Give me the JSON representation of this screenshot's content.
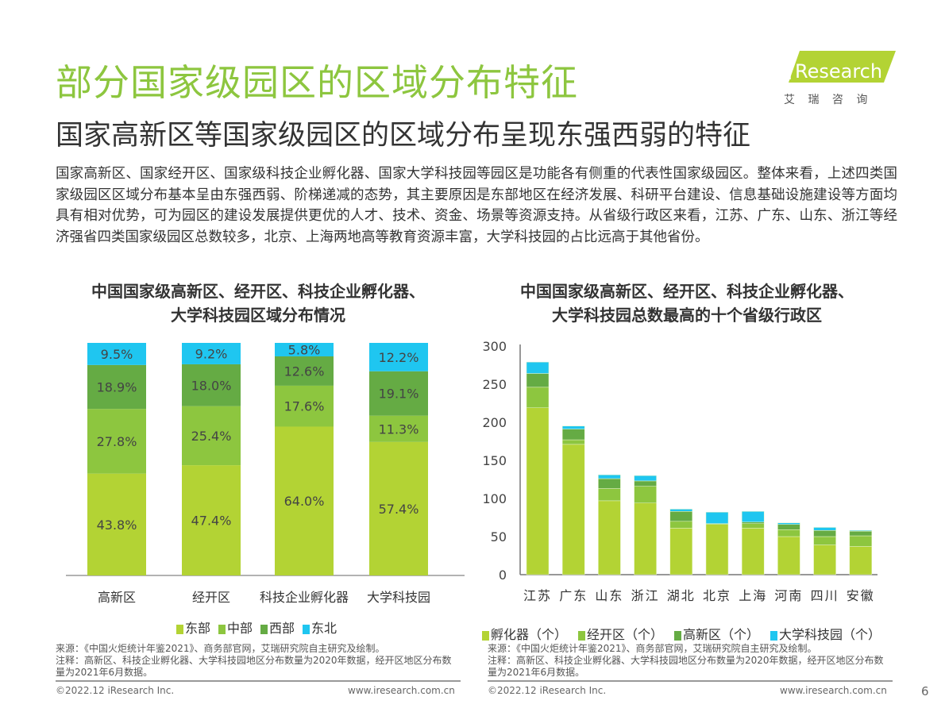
{
  "header": {
    "title": "部分国家级园区的区域分布特征",
    "subtitle": "国家高新区等国家级园区的区域分布呈现东强西弱的特征",
    "logo_text": "iResearch",
    "logo_sub": "艾 瑞 咨 询"
  },
  "body_text": "国家高新区、国家经开区、国家级科技企业孵化器、国家大学科技园等园区是功能各有侧重的代表性国家级园区。整体来看，上述四类国家级园区区域分布基本呈由东强西弱、阶梯递减的态势，其主要原因是东部地区在经济发展、科研平台建设、信息基础设施建设等方面均具有相对优势，可为园区的建设发展提供更优的人才、技术、资金、场景等资源支持。从省级行政区来看，江苏、广东、山东、浙江等经济强省四类国家级园区总数较多，北京、上海两地高等教育资源丰富，大学科技园的占比远高于其他省份。",
  "colors": {
    "accent": "#8dc63f",
    "east": "#b3d334",
    "central": "#8dc63f",
    "west": "#65ab44",
    "northeast": "#1fc6f0"
  },
  "chart_data": [
    {
      "type": "bar",
      "stacked": true,
      "percent": true,
      "title": "中国国家级高新区、经开区、科技企业孵化器、大学科技园区域分布情况",
      "title_lines": [
        "中国国家级高新区、经开区、科技企业孵化器、",
        "大学科技园区域分布情况"
      ],
      "categories": [
        "高新区",
        "经开区",
        "科技企业孵化器",
        "大学科技园"
      ],
      "series": [
        {
          "name": "东部",
          "values": [
            43.8,
            47.4,
            64.0,
            57.4
          ],
          "color": "#b3d334"
        },
        {
          "name": "中部",
          "values": [
            27.8,
            25.4,
            17.6,
            11.3
          ],
          "color": "#8dc63f"
        },
        {
          "name": "西部",
          "values": [
            18.9,
            18.0,
            12.6,
            19.1
          ],
          "color": "#65ab44"
        },
        {
          "name": "东北",
          "values": [
            9.5,
            9.2,
            5.8,
            12.2
          ],
          "color": "#1fc6f0"
        }
      ],
      "legend": "bottom",
      "ylim": [
        0,
        100
      ]
    },
    {
      "type": "bar",
      "stacked": true,
      "title": "中国国家级高新区、经开区、科技企业孵化器、大学科技园总数最高的十个省级行政区",
      "title_lines": [
        "中国国家级高新区、经开区、科技企业孵化器、",
        "大学科技园总数最高的十个省级行政区"
      ],
      "categories": [
        "江苏",
        "广东",
        "山东",
        "浙江",
        "湖北",
        "北京",
        "上海",
        "河南",
        "四川",
        "安徽"
      ],
      "series": [
        {
          "name": "孵化器（个）",
          "values": [
            219,
            171,
            97,
            94,
            61,
            66,
            61,
            50,
            39,
            37
          ],
          "color": "#b3d334"
        },
        {
          "name": "经开区（个）",
          "values": [
            27,
            6,
            16,
            22,
            9,
            1,
            6,
            9,
            11,
            14
          ],
          "color": "#8dc63f"
        },
        {
          "name": "高新区（个）",
          "values": [
            18,
            14,
            13,
            7,
            13,
            0,
            2,
            7,
            8,
            6
          ],
          "color": "#65ab44"
        },
        {
          "name": "大学科技园（个）",
          "values": [
            15,
            4,
            5,
            7,
            3,
            15,
            14,
            2,
            4,
            1
          ],
          "color": "#1fc6f0"
        }
      ],
      "yticks": [
        0,
        50,
        100,
        150,
        200,
        250,
        300
      ],
      "ylim": [
        0,
        300
      ],
      "legend": "bottom"
    }
  ],
  "notes": {
    "source": "来源：《中国火炬统计年鉴2021》、商务部官网，艾瑞研究院自主研究及绘制。",
    "note": "注释：高新区、科技企业孵化器、大学科技园地区分布数量为2020年数据，经开区地区分布数量为2021年6月数据。"
  },
  "footer": {
    "copyright": "©2022.12 iResearch Inc.",
    "url": "www.iresearch.com.cn",
    "page": "6"
  }
}
